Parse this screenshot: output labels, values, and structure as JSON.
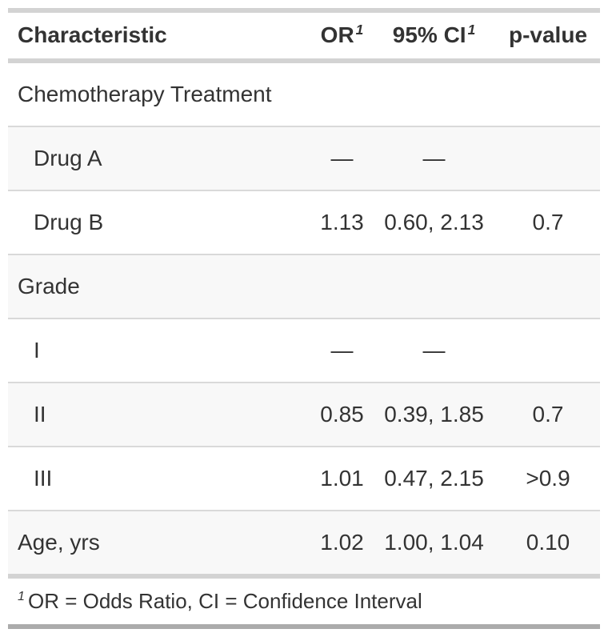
{
  "colors": {
    "text": "#333333",
    "heavy_border": "#d3d3d3",
    "bottom_border": "#ababab",
    "row_separator": "#d9d9d9",
    "stripe_background": "#f8f8f8",
    "page_background": "#ffffff"
  },
  "table": {
    "columns": [
      {
        "label": "Characteristic",
        "sup": ""
      },
      {
        "label": "OR",
        "sup": "1"
      },
      {
        "label": "95% CI",
        "sup": "1"
      },
      {
        "label": "p-value",
        "sup": ""
      }
    ],
    "rows": [
      {
        "label": "Chemotherapy Treatment",
        "or": "",
        "ci": "",
        "p": ""
      },
      {
        "label": "Drug A",
        "or": "—",
        "ci": "—",
        "p": ""
      },
      {
        "label": "Drug B",
        "or": "1.13",
        "ci": "0.60, 2.13",
        "p": "0.7"
      },
      {
        "label": "Grade",
        "or": "",
        "ci": "",
        "p": ""
      },
      {
        "label": "I",
        "or": "—",
        "ci": "—",
        "p": ""
      },
      {
        "label": "II",
        "or": "0.85",
        "ci": "0.39, 1.85",
        "p": "0.7"
      },
      {
        "label": "III",
        "or": "1.01",
        "ci": "0.47, 2.15",
        "p": ">0.9"
      },
      {
        "label": "Age, yrs",
        "or": "1.02",
        "ci": "1.00, 1.04",
        "p": "0.10"
      }
    ],
    "footnote": {
      "marker": "1",
      "text": "OR = Odds Ratio, CI = Confidence Interval"
    }
  },
  "chart_data": {
    "type": "table",
    "title": "",
    "columns": [
      "Characteristic",
      "OR",
      "95% CI",
      "p-value"
    ],
    "rows": [
      [
        "Chemotherapy Treatment",
        "",
        "",
        ""
      ],
      [
        "Drug A",
        "—",
        "—",
        ""
      ],
      [
        "Drug B",
        "1.13",
        "0.60, 2.13",
        "0.7"
      ],
      [
        "Grade",
        "",
        "",
        ""
      ],
      [
        "I",
        "—",
        "—",
        ""
      ],
      [
        "II",
        "0.85",
        "0.39, 1.85",
        "0.7"
      ],
      [
        "III",
        "1.01",
        "0.47, 2.15",
        ">0.9"
      ],
      [
        "Age, yrs",
        "1.02",
        "1.00, 1.04",
        "0.10"
      ]
    ],
    "footnotes": [
      "1 OR = Odds Ratio, CI = Confidence Interval"
    ],
    "layout_hints": {
      "label_column_align": "left",
      "stat_columns_align": "center",
      "striped_rows": true,
      "footnote_marker_style": "italic-superscript"
    }
  }
}
